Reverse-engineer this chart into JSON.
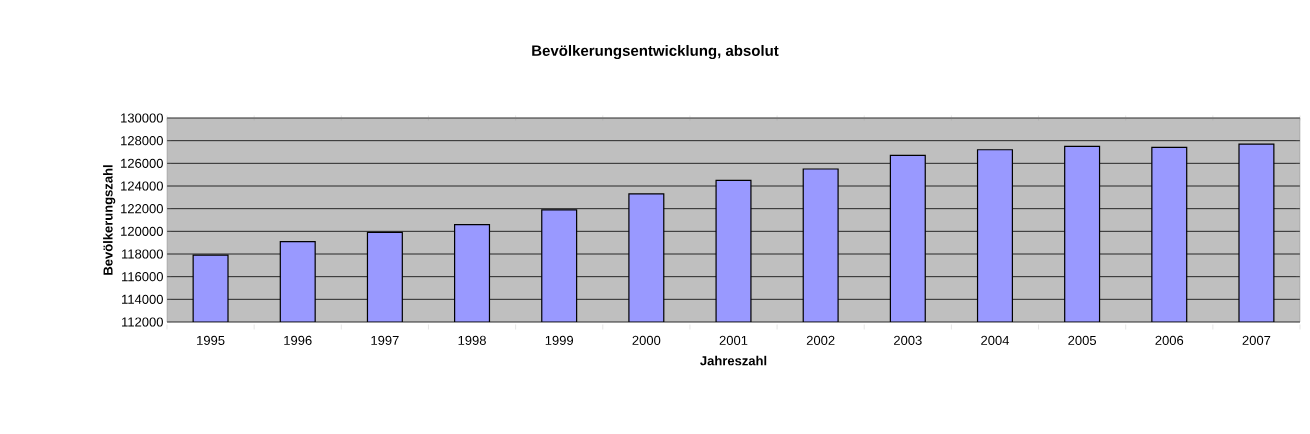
{
  "chart_data": {
    "type": "bar",
    "title": "Bevölkerungsentwicklung, absolut",
    "xlabel": "Jahreszahl",
    "ylabel": "Bevölkerungszahl",
    "categories": [
      "1995",
      "1996",
      "1997",
      "1998",
      "1999",
      "2000",
      "2001",
      "2002",
      "2003",
      "2004",
      "2005",
      "2006",
      "2007"
    ],
    "values": [
      117900,
      119100,
      119900,
      120600,
      121900,
      123300,
      124500,
      125500,
      126700,
      127200,
      127500,
      127400,
      127700
    ],
    "color": "#9999ff",
    "ylim": [
      112000,
      130000
    ],
    "yticks": [
      112000,
      114000,
      116000,
      118000,
      120000,
      122000,
      124000,
      126000,
      128000,
      130000
    ],
    "grid": "y"
  }
}
